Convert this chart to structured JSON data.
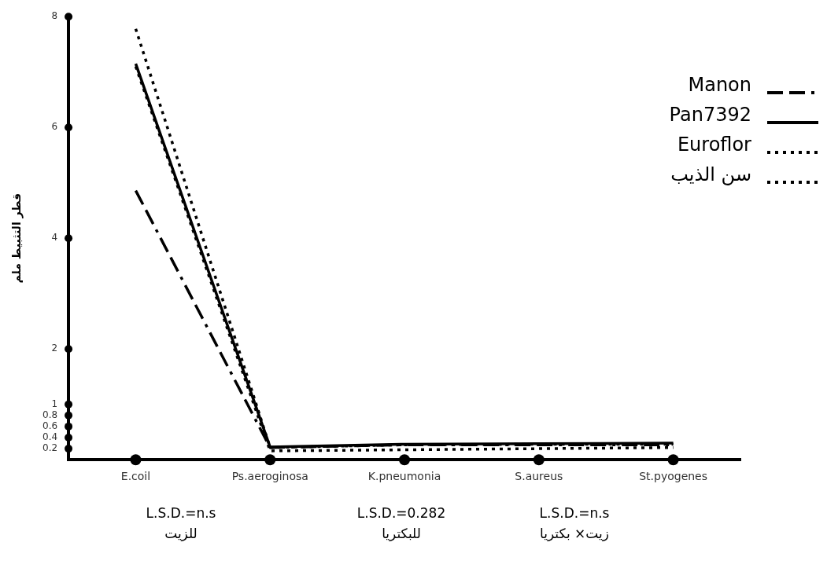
{
  "chart_data": {
    "type": "line",
    "ylabel": "قطر التثبيط ملم",
    "categories": [
      "E.coil",
      "Ps.aeroginosa",
      "K.pneumonia",
      "S.aureus",
      "St.pyogenes"
    ],
    "series": [
      {
        "name": "Manon",
        "color": "#000000",
        "line_style": "dashed",
        "values": [
          4.86,
          0.22,
          0.27,
          0.27,
          0.27
        ]
      },
      {
        "name": "Pan7392",
        "color": "#000000",
        "line_style": "solid",
        "values": [
          7.15,
          0.23,
          0.28,
          0.29,
          0.3
        ]
      },
      {
        "name": "Euroflor",
        "color": "#000000",
        "line_style": "dotted",
        "values": [
          7.78,
          0.22,
          0.27,
          0.28,
          0.28
        ]
      },
      {
        "name": "سن الذيب",
        "color": "#000000",
        "line_style": "dotted",
        "values": [
          7.1,
          0.16,
          0.18,
          0.2,
          0.22
        ]
      }
    ],
    "ylim": [
      0,
      8
    ],
    "yticks": [
      0.2,
      0.4,
      0.6,
      0.8,
      1,
      2,
      4,
      6,
      8
    ],
    "grid": false,
    "legend": "top right",
    "marker": "none",
    "annotations": [
      "L.S.D.=n.s\nللزيت",
      "L.S.D.=0.282\nللبكتريا",
      "L.S.D.=n.s\nزيت× بكتريا"
    ]
  }
}
